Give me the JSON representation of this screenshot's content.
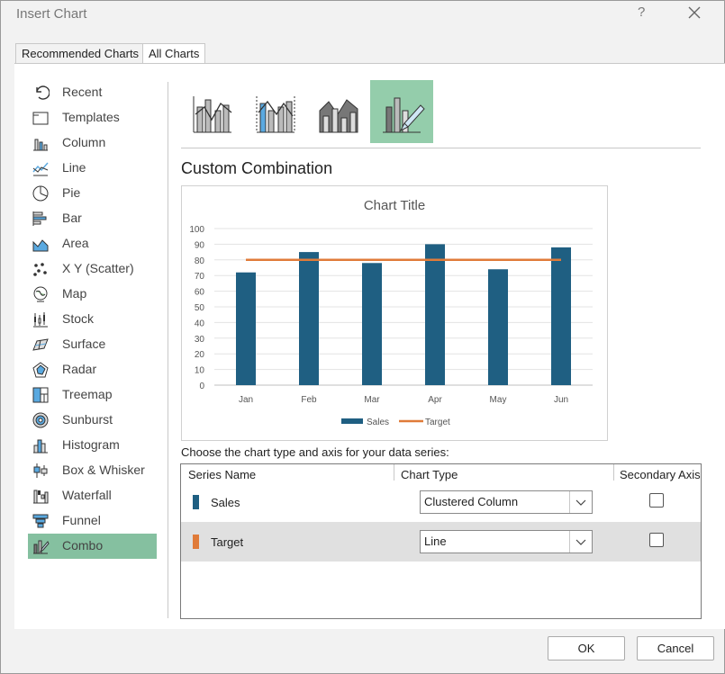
{
  "dialog": {
    "title": "Insert Chart",
    "help": "?"
  },
  "tabs": [
    {
      "label": "Recommended Charts"
    },
    {
      "label": "All Charts"
    }
  ],
  "chart_types": [
    {
      "label": "Recent",
      "icon": "recent-icon"
    },
    {
      "label": "Templates",
      "icon": "templates-icon"
    },
    {
      "label": "Column",
      "icon": "column-chart-icon"
    },
    {
      "label": "Line",
      "icon": "line-chart-icon"
    },
    {
      "label": "Pie",
      "icon": "pie-chart-icon"
    },
    {
      "label": "Bar",
      "icon": "bar-chart-icon"
    },
    {
      "label": "Area",
      "icon": "area-chart-icon"
    },
    {
      "label": "X Y (Scatter)",
      "icon": "scatter-chart-icon"
    },
    {
      "label": "Map",
      "icon": "map-chart-icon"
    },
    {
      "label": "Stock",
      "icon": "stock-chart-icon"
    },
    {
      "label": "Surface",
      "icon": "surface-chart-icon"
    },
    {
      "label": "Radar",
      "icon": "radar-chart-icon"
    },
    {
      "label": "Treemap",
      "icon": "treemap-chart-icon"
    },
    {
      "label": "Sunburst",
      "icon": "sunburst-chart-icon"
    },
    {
      "label": "Histogram",
      "icon": "histogram-chart-icon"
    },
    {
      "label": "Box & Whisker",
      "icon": "box-whisker-chart-icon"
    },
    {
      "label": "Waterfall",
      "icon": "waterfall-chart-icon"
    },
    {
      "label": "Funnel",
      "icon": "funnel-chart-icon"
    },
    {
      "label": "Combo",
      "icon": "combo-chart-icon"
    }
  ],
  "selected_type": "Combo",
  "subtypes": [
    {
      "icon": "clustered-column-line-icon"
    },
    {
      "icon": "clustered-column-line-secondary-icon"
    },
    {
      "icon": "stacked-area-column-icon"
    },
    {
      "icon": "custom-combination-icon",
      "selected": true
    }
  ],
  "combo_title": "Custom Combination",
  "chart_data": {
    "type": "bar",
    "title": "Chart Title",
    "categories": [
      "Jan",
      "Feb",
      "Mar",
      "Apr",
      "May",
      "Jun"
    ],
    "series": [
      {
        "name": "Sales",
        "kind": "bar",
        "color": "#1f5f82",
        "values": [
          72,
          85,
          78,
          90,
          74,
          88
        ]
      },
      {
        "name": "Target",
        "kind": "line",
        "color": "#e07b39",
        "values": [
          80,
          80,
          80,
          80,
          80,
          80
        ]
      }
    ],
    "ylim": [
      0,
      100
    ],
    "yticks": [
      0,
      10,
      20,
      30,
      40,
      50,
      60,
      70,
      80,
      90,
      100
    ],
    "grid": true,
    "legend": "bottom"
  },
  "series_panel": {
    "caption": "Choose the chart type and axis for your data series:",
    "headers": {
      "name": "Series Name",
      "type": "Chart Type",
      "axis": "Secondary Axis"
    },
    "rows": [
      {
        "name": "Sales",
        "color": "#1f5f82",
        "chart_type": "Clustered Column",
        "secondary": false
      },
      {
        "name": "Target",
        "color": "#e07b39",
        "chart_type": "Line",
        "secondary": false
      }
    ]
  },
  "buttons": {
    "ok": "OK",
    "cancel": "Cancel"
  }
}
